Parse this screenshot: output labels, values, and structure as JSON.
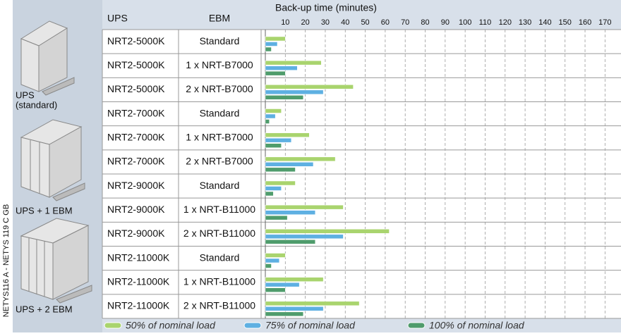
{
  "side_note": "NETYS116 A - NETYS 119 C GB",
  "panels": [
    {
      "label_lines": [
        "UPS",
        "(standard)"
      ]
    },
    {
      "label_lines": [
        "UPS + 1 EBM"
      ]
    },
    {
      "label_lines": [
        "UPS + 2 EBM"
      ]
    }
  ],
  "chart_data": {
    "type": "bar",
    "orientation": "horizontal",
    "title": "Back-up time (minutes)",
    "columns": [
      {
        "header": "UPS",
        "values": [
          "NRT2-5000K",
          "NRT2-5000K",
          "NRT2-5000K",
          "NRT2-7000K",
          "NRT2-7000K",
          "NRT2-7000K",
          "NRT2-9000K",
          "NRT2-9000K",
          "NRT2-9000K",
          "NRT2-11000K",
          "NRT2-11000K",
          "NRT2-11000K"
        ]
      },
      {
        "header": "EBM",
        "values": [
          "Standard",
          "1 x NRT-B7000",
          "2 x NRT-B7000",
          "Standard",
          "1 x NRT-B7000",
          "2 x NRT-B7000",
          "Standard",
          "1 x NRT-B11000",
          "2 x NRT-B11000",
          "Standard",
          "1 x NRT-B11000",
          "2 x NRT-B11000"
        ]
      }
    ],
    "series": [
      {
        "name": "50% of nominal load",
        "color": "#a9d46e",
        "values": [
          10,
          28,
          44,
          8,
          22,
          35,
          15,
          39,
          62,
          10,
          29,
          47
        ]
      },
      {
        "name": "75% of nominal load",
        "color": "#5eb0e2",
        "values": [
          6,
          16,
          29,
          5,
          13,
          24,
          8,
          25,
          39,
          7,
          17,
          29
        ]
      },
      {
        "name": "100% of nominal load",
        "color": "#4f9c6c",
        "values": [
          3,
          10,
          19,
          2,
          8,
          15,
          4,
          11,
          25,
          3,
          10,
          19
        ]
      }
    ],
    "xlim": [
      0,
      178
    ],
    "xticks": [
      10,
      20,
      30,
      40,
      50,
      60,
      70,
      80,
      90,
      100,
      110,
      120,
      130,
      140,
      150,
      160,
      170
    ],
    "grid": true
  }
}
